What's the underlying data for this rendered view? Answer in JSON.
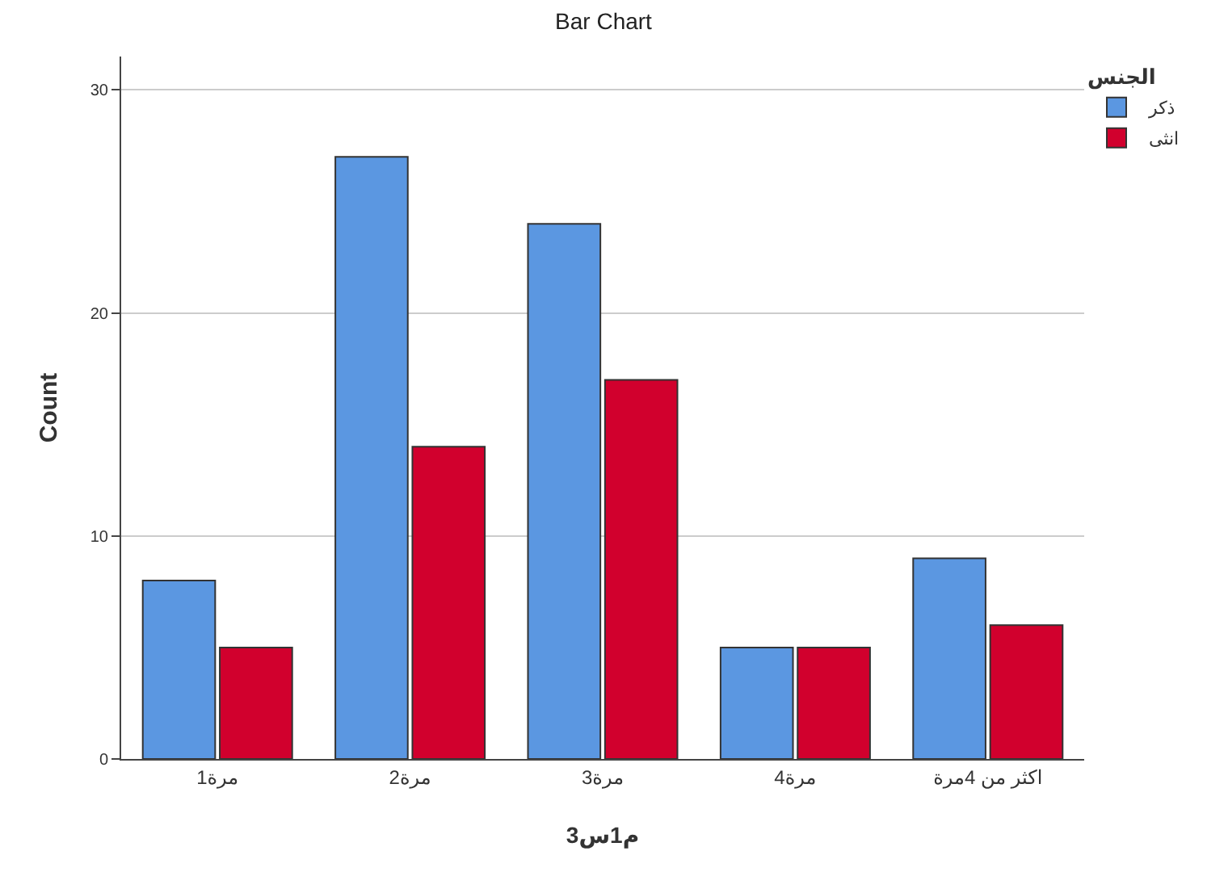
{
  "chart_data": {
    "type": "bar",
    "title": "Bar Chart",
    "xlabel": "م1س3",
    "ylabel": "Count",
    "legend_title": "الجنس",
    "categories": [
      "مرة1",
      "مرة2",
      "مرة3",
      "مرة4",
      "اكثر من 4مرة"
    ],
    "series": [
      {
        "name": "ذكر",
        "color": "#5b97e1",
        "values": [
          8,
          27,
          24,
          5,
          9
        ]
      },
      {
        "name": "انثى",
        "color": "#d1002d",
        "values": [
          5,
          14,
          17,
          5,
          6
        ]
      }
    ],
    "ylim": [
      0,
      31.5
    ],
    "yticks": [
      0,
      10,
      20,
      30
    ],
    "grid": "y",
    "legend": "top right"
  }
}
